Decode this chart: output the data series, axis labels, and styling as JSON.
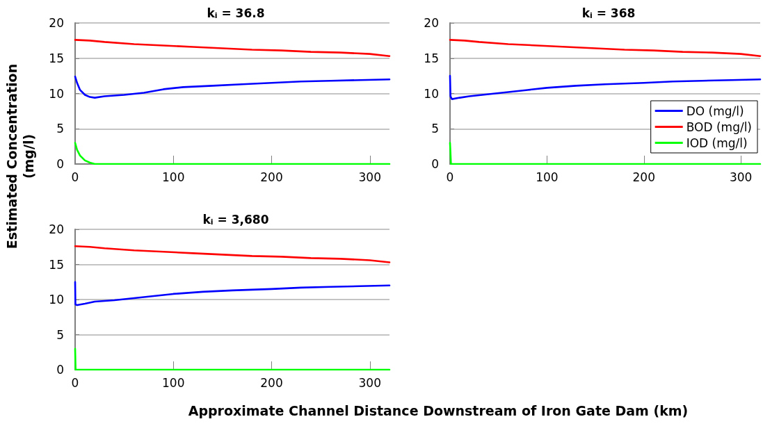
{
  "chart_data": [
    {
      "type": "line",
      "title": "k$_{i}$ = 36.8",
      "ylabel": "Estimated Concentration (mg/l)",
      "xlabel": "Approximate Channel Distance Downstream of Iron Gate Dam (km)",
      "xlim": [
        0,
        320
      ],
      "xticks": [
        0,
        100,
        200,
        300
      ],
      "ylim": [
        0,
        20
      ],
      "yticks": [
        0,
        5,
        10,
        15,
        20
      ],
      "grid": "y",
      "legend": false,
      "marker": "none",
      "line_style": "solid",
      "tick_labels": "xy",
      "series": [
        {
          "color": "#0000ff",
          "x": [
            0,
            2,
            5,
            10,
            15,
            20,
            30,
            50,
            70,
            90,
            110,
            140,
            170,
            200,
            230,
            260,
            290,
            320
          ],
          "values": [
            12.4,
            11.5,
            10.5,
            9.8,
            9.5,
            9.4,
            9.6,
            9.8,
            10.1,
            10.6,
            10.9,
            11.1,
            11.3,
            11.5,
            11.7,
            11.8,
            11.9,
            12.0
          ]
        },
        {
          "color": "#ff0000",
          "x": [
            0,
            15,
            30,
            60,
            90,
            120,
            150,
            180,
            210,
            240,
            270,
            300,
            320
          ],
          "values": [
            17.6,
            17.5,
            17.3,
            17.0,
            16.8,
            16.6,
            16.4,
            16.2,
            16.1,
            15.9,
            15.8,
            15.6,
            15.3
          ]
        },
        {
          "color": "#00ff00",
          "x": [
            0,
            2,
            5,
            10,
            15,
            20,
            320
          ],
          "values": [
            3.0,
            2.0,
            1.2,
            0.5,
            0.2,
            0,
            0
          ]
        }
      ]
    },
    {
      "type": "line",
      "title": "k$_{i}$ = 368",
      "xlim": [
        0,
        320
      ],
      "xticks": [
        0,
        100,
        200,
        300
      ],
      "ylim": [
        0,
        20
      ],
      "yticks": [
        0,
        5,
        10,
        15,
        20
      ],
      "grid": "y",
      "legend": "bottom right",
      "marker": "none",
      "line_style": "solid",
      "tick_labels": "xy",
      "series": [
        {
          "name": "DO (mg/l)",
          "color": "#0000ff",
          "x": [
            0,
            0.5,
            2,
            10,
            20,
            40,
            60,
            80,
            100,
            130,
            160,
            200,
            230,
            260,
            290,
            320
          ],
          "values": [
            12.5,
            9.6,
            9.2,
            9.4,
            9.6,
            9.9,
            10.2,
            10.5,
            10.8,
            11.1,
            11.3,
            11.5,
            11.7,
            11.8,
            11.9,
            12.0
          ]
        },
        {
          "name": "BOD (mg/l)",
          "color": "#ff0000",
          "x": [
            0,
            15,
            30,
            60,
            90,
            120,
            150,
            180,
            210,
            240,
            270,
            300,
            320
          ],
          "values": [
            17.6,
            17.5,
            17.3,
            17.0,
            16.8,
            16.6,
            16.4,
            16.2,
            16.1,
            15.9,
            15.8,
            15.6,
            15.3
          ]
        },
        {
          "name": "IOD (mg/l)",
          "color": "#00ff00",
          "x": [
            0,
            1,
            320
          ],
          "values": [
            3.0,
            0,
            0
          ]
        }
      ]
    },
    {
      "type": "line",
      "title": "k$_{i}$ = 3,680",
      "xlim": [
        0,
        320
      ],
      "xticks": [
        0,
        100,
        200,
        300
      ],
      "ylim": [
        0,
        20
      ],
      "yticks": [
        0,
        5,
        10,
        15,
        20
      ],
      "grid": "y",
      "legend": false,
      "marker": "none",
      "line_style": "solid",
      "tick_labels": "xy",
      "series": [
        {
          "color": "#0000ff",
          "x": [
            0,
            0.3,
            2,
            10,
            20,
            40,
            60,
            80,
            100,
            130,
            160,
            200,
            230,
            260,
            290,
            320
          ],
          "values": [
            12.5,
            9.3,
            9.2,
            9.4,
            9.7,
            9.9,
            10.2,
            10.5,
            10.8,
            11.1,
            11.3,
            11.5,
            11.7,
            11.8,
            11.9,
            12.0
          ]
        },
        {
          "color": "#ff0000",
          "x": [
            0,
            15,
            30,
            60,
            90,
            120,
            150,
            180,
            210,
            240,
            270,
            300,
            320
          ],
          "values": [
            17.6,
            17.5,
            17.3,
            17.0,
            16.8,
            16.6,
            16.4,
            16.2,
            16.1,
            15.9,
            15.8,
            15.6,
            15.3
          ]
        },
        {
          "color": "#00ff00",
          "x": [
            0,
            0.5,
            320
          ],
          "values": [
            3.0,
            0,
            0
          ]
        }
      ]
    }
  ]
}
